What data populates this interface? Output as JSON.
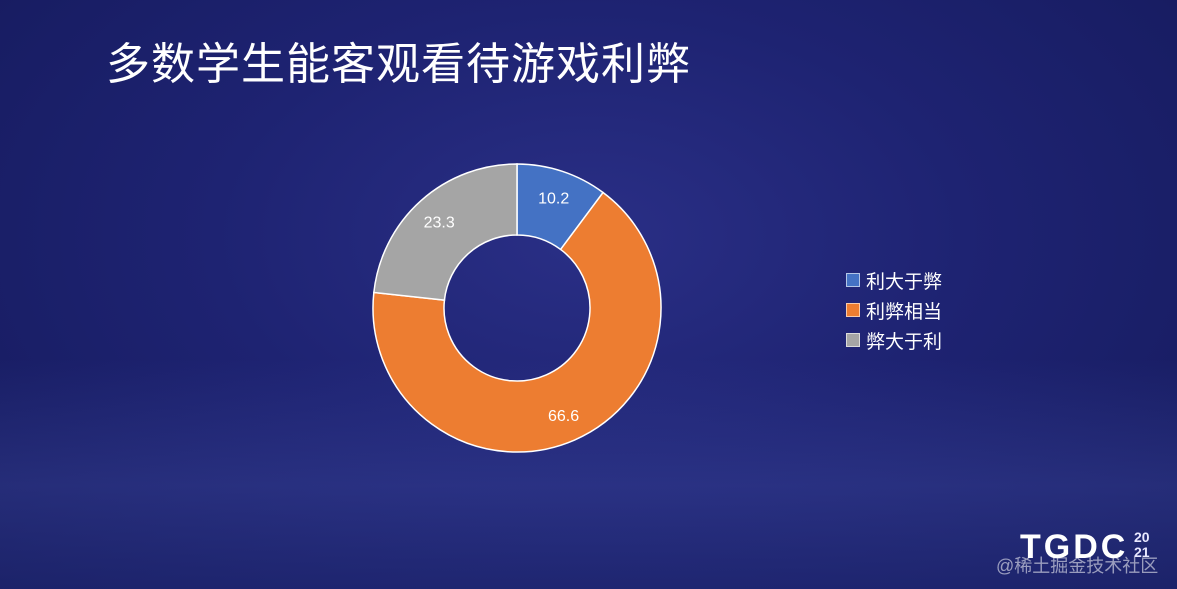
{
  "slide": {
    "title": "多数学生能客观看待游戏利弊"
  },
  "chart_data": {
    "type": "pie",
    "donut": true,
    "labels": [
      "利大于弊",
      "利弊相当",
      "弊大于利"
    ],
    "values": [
      10.2,
      66.6,
      23.3
    ],
    "colors": [
      "#4472c4",
      "#ed7d31",
      "#a5a5a5"
    ],
    "data_labels": [
      "10.2",
      "66.6",
      "23.3"
    ],
    "legend_position": "right"
  },
  "branding": {
    "logo_text": "TGDC",
    "logo_year_top": "20",
    "logo_year_bottom": "21",
    "watermark": "@稀土掘金技术社区"
  }
}
